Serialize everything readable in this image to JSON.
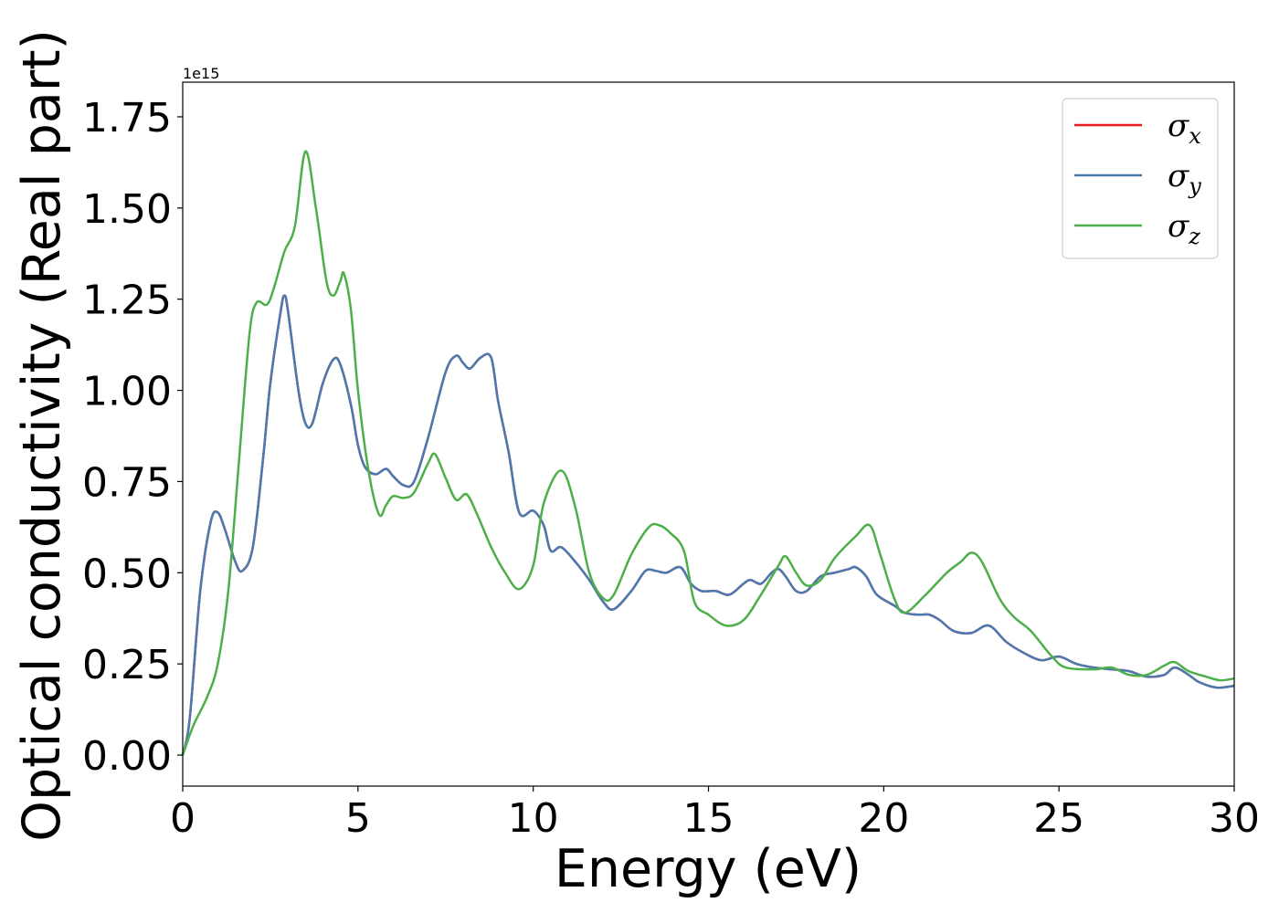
{
  "chart_data": {
    "type": "line",
    "title": "",
    "xlabel": "Energy (eV)",
    "ylabel": "Optical conductivity (Real part)",
    "y_offset_label": "1e15",
    "xlim": [
      0,
      30
    ],
    "ylim": [
      -0.085,
      1.845
    ],
    "x_ticks": [
      0,
      5,
      10,
      15,
      20,
      25,
      30
    ],
    "x_tick_labels": [
      "0",
      "5",
      "10",
      "15",
      "20",
      "25",
      "30"
    ],
    "y_ticks": [
      0.0,
      0.25,
      0.5,
      0.75,
      1.0,
      1.25,
      1.5,
      1.75
    ],
    "y_tick_labels": [
      "0.00",
      "0.25",
      "0.50",
      "0.75",
      "1.00",
      "1.25",
      "1.50",
      "1.75"
    ],
    "grid": false,
    "legend_position": "top-right",
    "series": [
      {
        "name": "σx",
        "symbol": "σ",
        "subscript": "x",
        "color": "#e41a1c",
        "points": [
          [
            0,
            0
          ],
          [
            0.2,
            0.1
          ],
          [
            0.5,
            0.45
          ],
          [
            0.8,
            0.64
          ],
          [
            1.0,
            0.665
          ],
          [
            1.2,
            0.62
          ],
          [
            1.5,
            0.53
          ],
          [
            1.7,
            0.505
          ],
          [
            2.0,
            0.57
          ],
          [
            2.3,
            0.82
          ],
          [
            2.5,
            1.02
          ],
          [
            2.8,
            1.22
          ],
          [
            2.9,
            1.26
          ],
          [
            3.0,
            1.22
          ],
          [
            3.3,
            1.0
          ],
          [
            3.5,
            0.91
          ],
          [
            3.7,
            0.91
          ],
          [
            4.0,
            1.02
          ],
          [
            4.3,
            1.085
          ],
          [
            4.5,
            1.07
          ],
          [
            4.8,
            0.96
          ],
          [
            5.0,
            0.85
          ],
          [
            5.2,
            0.79
          ],
          [
            5.5,
            0.77
          ],
          [
            5.8,
            0.785
          ],
          [
            6.0,
            0.765
          ],
          [
            6.3,
            0.74
          ],
          [
            6.6,
            0.75
          ],
          [
            7.0,
            0.87
          ],
          [
            7.5,
            1.05
          ],
          [
            7.8,
            1.095
          ],
          [
            8.0,
            1.075
          ],
          [
            8.2,
            1.06
          ],
          [
            8.5,
            1.09
          ],
          [
            8.8,
            1.09
          ],
          [
            9.0,
            0.97
          ],
          [
            9.3,
            0.83
          ],
          [
            9.6,
            0.665
          ],
          [
            10.0,
            0.67
          ],
          [
            10.3,
            0.63
          ],
          [
            10.5,
            0.56
          ],
          [
            10.8,
            0.57
          ],
          [
            11.2,
            0.53
          ],
          [
            11.6,
            0.48
          ],
          [
            12.0,
            0.42
          ],
          [
            12.3,
            0.4
          ],
          [
            12.8,
            0.45
          ],
          [
            13.2,
            0.505
          ],
          [
            13.5,
            0.505
          ],
          [
            13.8,
            0.5
          ],
          [
            14.2,
            0.515
          ],
          [
            14.5,
            0.47
          ],
          [
            14.8,
            0.45
          ],
          [
            15.2,
            0.45
          ],
          [
            15.6,
            0.44
          ],
          [
            16.0,
            0.47
          ],
          [
            16.2,
            0.48
          ],
          [
            16.5,
            0.47
          ],
          [
            16.8,
            0.5
          ],
          [
            17.0,
            0.51
          ],
          [
            17.2,
            0.49
          ],
          [
            17.5,
            0.45
          ],
          [
            17.8,
            0.45
          ],
          [
            18.2,
            0.49
          ],
          [
            18.6,
            0.5
          ],
          [
            19.0,
            0.51
          ],
          [
            19.2,
            0.515
          ],
          [
            19.5,
            0.49
          ],
          [
            19.8,
            0.44
          ],
          [
            20.3,
            0.41
          ],
          [
            20.6,
            0.39
          ],
          [
            21.0,
            0.385
          ],
          [
            21.3,
            0.385
          ],
          [
            21.6,
            0.37
          ],
          [
            22.0,
            0.34
          ],
          [
            22.5,
            0.335
          ],
          [
            23.0,
            0.355
          ],
          [
            23.5,
            0.31
          ],
          [
            24.0,
            0.28
          ],
          [
            24.5,
            0.26
          ],
          [
            25.0,
            0.27
          ],
          [
            25.5,
            0.25
          ],
          [
            26.0,
            0.24
          ],
          [
            26.5,
            0.235
          ],
          [
            27.0,
            0.23
          ],
          [
            27.5,
            0.215
          ],
          [
            28.0,
            0.22
          ],
          [
            28.3,
            0.24
          ],
          [
            28.7,
            0.22
          ],
          [
            29.0,
            0.2
          ],
          [
            29.5,
            0.185
          ],
          [
            30.0,
            0.19
          ]
        ]
      },
      {
        "name": "σy",
        "symbol": "σ",
        "subscript": "y",
        "color": "#4a7ab0",
        "points": [
          [
            0,
            0
          ],
          [
            0.2,
            0.1
          ],
          [
            0.5,
            0.45
          ],
          [
            0.8,
            0.64
          ],
          [
            1.0,
            0.665
          ],
          [
            1.2,
            0.62
          ],
          [
            1.5,
            0.53
          ],
          [
            1.7,
            0.505
          ],
          [
            2.0,
            0.57
          ],
          [
            2.3,
            0.82
          ],
          [
            2.5,
            1.02
          ],
          [
            2.8,
            1.22
          ],
          [
            2.9,
            1.26
          ],
          [
            3.0,
            1.22
          ],
          [
            3.3,
            1.0
          ],
          [
            3.5,
            0.91
          ],
          [
            3.7,
            0.91
          ],
          [
            4.0,
            1.02
          ],
          [
            4.3,
            1.085
          ],
          [
            4.5,
            1.07
          ],
          [
            4.8,
            0.96
          ],
          [
            5.0,
            0.85
          ],
          [
            5.2,
            0.79
          ],
          [
            5.5,
            0.77
          ],
          [
            5.8,
            0.785
          ],
          [
            6.0,
            0.765
          ],
          [
            6.3,
            0.74
          ],
          [
            6.6,
            0.75
          ],
          [
            7.0,
            0.87
          ],
          [
            7.5,
            1.05
          ],
          [
            7.8,
            1.095
          ],
          [
            8.0,
            1.075
          ],
          [
            8.2,
            1.06
          ],
          [
            8.5,
            1.09
          ],
          [
            8.8,
            1.09
          ],
          [
            9.0,
            0.97
          ],
          [
            9.3,
            0.83
          ],
          [
            9.6,
            0.665
          ],
          [
            10.0,
            0.67
          ],
          [
            10.3,
            0.63
          ],
          [
            10.5,
            0.56
          ],
          [
            10.8,
            0.57
          ],
          [
            11.2,
            0.53
          ],
          [
            11.6,
            0.48
          ],
          [
            12.0,
            0.42
          ],
          [
            12.3,
            0.4
          ],
          [
            12.8,
            0.45
          ],
          [
            13.2,
            0.505
          ],
          [
            13.5,
            0.505
          ],
          [
            13.8,
            0.5
          ],
          [
            14.2,
            0.515
          ],
          [
            14.5,
            0.47
          ],
          [
            14.8,
            0.45
          ],
          [
            15.2,
            0.45
          ],
          [
            15.6,
            0.44
          ],
          [
            16.0,
            0.47
          ],
          [
            16.2,
            0.48
          ],
          [
            16.5,
            0.47
          ],
          [
            16.8,
            0.5
          ],
          [
            17.0,
            0.51
          ],
          [
            17.2,
            0.49
          ],
          [
            17.5,
            0.45
          ],
          [
            17.8,
            0.45
          ],
          [
            18.2,
            0.49
          ],
          [
            18.6,
            0.5
          ],
          [
            19.0,
            0.51
          ],
          [
            19.2,
            0.515
          ],
          [
            19.5,
            0.49
          ],
          [
            19.8,
            0.44
          ],
          [
            20.3,
            0.41
          ],
          [
            20.6,
            0.39
          ],
          [
            21.0,
            0.385
          ],
          [
            21.3,
            0.385
          ],
          [
            21.6,
            0.37
          ],
          [
            22.0,
            0.34
          ],
          [
            22.5,
            0.335
          ],
          [
            23.0,
            0.355
          ],
          [
            23.5,
            0.31
          ],
          [
            24.0,
            0.28
          ],
          [
            24.5,
            0.26
          ],
          [
            25.0,
            0.27
          ],
          [
            25.5,
            0.25
          ],
          [
            26.0,
            0.24
          ],
          [
            26.5,
            0.235
          ],
          [
            27.0,
            0.23
          ],
          [
            27.5,
            0.215
          ],
          [
            28.0,
            0.22
          ],
          [
            28.3,
            0.24
          ],
          [
            28.7,
            0.22
          ],
          [
            29.0,
            0.2
          ],
          [
            29.5,
            0.185
          ],
          [
            30.0,
            0.19
          ]
        ]
      },
      {
        "name": "σz",
        "symbol": "σ",
        "subscript": "z",
        "color": "#4daf4a",
        "points": [
          [
            0,
            0
          ],
          [
            0.3,
            0.08
          ],
          [
            0.7,
            0.16
          ],
          [
            1.0,
            0.25
          ],
          [
            1.3,
            0.45
          ],
          [
            1.6,
            0.8
          ],
          [
            1.9,
            1.15
          ],
          [
            2.1,
            1.24
          ],
          [
            2.4,
            1.235
          ],
          [
            2.6,
            1.28
          ],
          [
            2.9,
            1.38
          ],
          [
            3.2,
            1.45
          ],
          [
            3.5,
            1.655
          ],
          [
            3.8,
            1.5
          ],
          [
            4.1,
            1.3
          ],
          [
            4.3,
            1.26
          ],
          [
            4.5,
            1.3
          ],
          [
            4.6,
            1.32
          ],
          [
            4.8,
            1.22
          ],
          [
            5.0,
            1.0
          ],
          [
            5.3,
            0.78
          ],
          [
            5.6,
            0.66
          ],
          [
            5.8,
            0.685
          ],
          [
            6.0,
            0.71
          ],
          [
            6.3,
            0.705
          ],
          [
            6.6,
            0.72
          ],
          [
            7.0,
            0.8
          ],
          [
            7.2,
            0.825
          ],
          [
            7.5,
            0.76
          ],
          [
            7.8,
            0.7
          ],
          [
            8.1,
            0.715
          ],
          [
            8.4,
            0.66
          ],
          [
            8.8,
            0.57
          ],
          [
            9.2,
            0.5
          ],
          [
            9.6,
            0.455
          ],
          [
            10.0,
            0.52
          ],
          [
            10.3,
            0.69
          ],
          [
            10.8,
            0.78
          ],
          [
            11.2,
            0.68
          ],
          [
            11.6,
            0.5
          ],
          [
            12.0,
            0.43
          ],
          [
            12.3,
            0.44
          ],
          [
            12.8,
            0.55
          ],
          [
            13.3,
            0.625
          ],
          [
            13.6,
            0.63
          ],
          [
            13.9,
            0.61
          ],
          [
            14.3,
            0.56
          ],
          [
            14.6,
            0.42
          ],
          [
            15.0,
            0.385
          ],
          [
            15.5,
            0.355
          ],
          [
            16.0,
            0.37
          ],
          [
            16.5,
            0.44
          ],
          [
            17.0,
            0.52
          ],
          [
            17.2,
            0.545
          ],
          [
            17.5,
            0.5
          ],
          [
            17.8,
            0.465
          ],
          [
            18.2,
            0.48
          ],
          [
            18.6,
            0.54
          ],
          [
            19.2,
            0.6
          ],
          [
            19.6,
            0.63
          ],
          [
            19.9,
            0.55
          ],
          [
            20.3,
            0.43
          ],
          [
            20.6,
            0.39
          ],
          [
            21.2,
            0.44
          ],
          [
            21.8,
            0.5
          ],
          [
            22.2,
            0.53
          ],
          [
            22.5,
            0.555
          ],
          [
            22.8,
            0.53
          ],
          [
            23.3,
            0.43
          ],
          [
            23.7,
            0.38
          ],
          [
            24.2,
            0.34
          ],
          [
            24.8,
            0.27
          ],
          [
            25.2,
            0.24
          ],
          [
            26.0,
            0.235
          ],
          [
            26.5,
            0.24
          ],
          [
            27.0,
            0.22
          ],
          [
            27.5,
            0.22
          ],
          [
            28.0,
            0.245
          ],
          [
            28.3,
            0.255
          ],
          [
            28.7,
            0.23
          ],
          [
            29.2,
            0.215
          ],
          [
            29.6,
            0.205
          ],
          [
            30.0,
            0.21
          ]
        ]
      }
    ]
  }
}
